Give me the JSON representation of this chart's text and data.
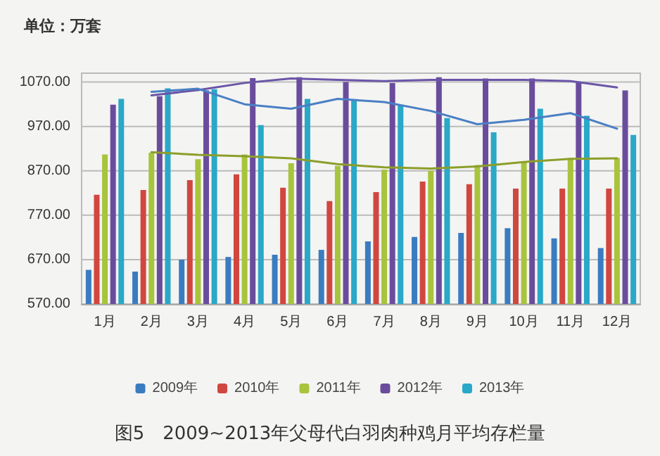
{
  "chart_data": {
    "type": "bar",
    "title": "图5　2009~2013年父母代白羽肉种鸡月平均存栏量",
    "ylabel": "单位：万套",
    "categories": [
      "1月",
      "2月",
      "3月",
      "4月",
      "5月",
      "6月",
      "7月",
      "8月",
      "9月",
      "10月",
      "11月",
      "12月"
    ],
    "series": [
      {
        "name": "2009年",
        "color": "#3a7cc0",
        "values": [
          647,
          643,
          670,
          676,
          681,
          692,
          711,
          721,
          730,
          741,
          718,
          696
        ]
      },
      {
        "name": "2010年",
        "color": "#d0473f",
        "values": [
          816,
          827,
          849,
          862,
          832,
          802,
          822,
          846,
          840,
          830,
          830,
          830
        ]
      },
      {
        "name": "2011年",
        "color": "#a8c43c",
        "values": [
          907,
          911,
          896,
          907,
          887,
          881,
          873,
          870,
          883,
          892,
          899,
          899
        ]
      },
      {
        "name": "2012年",
        "color": "#6a4c9c",
        "values": [
          1019,
          1038,
          1051,
          1079,
          1081,
          1070,
          1068,
          1081,
          1078,
          1078,
          1070,
          1051
        ]
      },
      {
        "name": "2013年",
        "color": "#2aa8c8",
        "values": [
          1032,
          1056,
          1054,
          973,
          1032,
          1029,
          1018,
          989,
          957,
          1010,
          994,
          951
        ]
      },
      {
        "type": "line",
        "color": "#6a55a8",
        "values": [
          null,
          1040,
          1052,
          1068,
          1078,
          1075,
          1072,
          1075,
          1075,
          1075,
          1072,
          1058
        ]
      },
      {
        "type": "line",
        "color": "#4a7fc4",
        "values": [
          null,
          1048,
          1055,
          1020,
          1010,
          1032,
          1025,
          1005,
          975,
          985,
          1000,
          965
        ]
      },
      {
        "type": "line",
        "color": "#8c9e2a",
        "values": [
          null,
          912,
          906,
          903,
          898,
          885,
          878,
          875,
          880,
          890,
          897,
          898
        ]
      }
    ],
    "ylim": [
      570,
      1090
    ],
    "yticks": [
      {
        "value": 570,
        "label": "570.00"
      },
      {
        "value": 670,
        "label": "670.00"
      },
      {
        "value": 770,
        "label": "770.00"
      },
      {
        "value": 870,
        "label": "870.00"
      },
      {
        "value": 970,
        "label": "970.00"
      },
      {
        "value": 1070,
        "label": "1070.00"
      }
    ],
    "grid": "y",
    "legend": "bottom",
    "marker": "none",
    "line_style": "solid"
  }
}
